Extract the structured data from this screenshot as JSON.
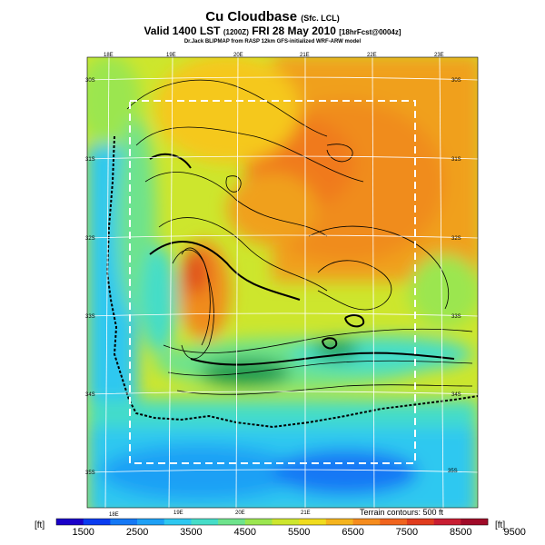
{
  "title": {
    "main": "Cu Cloudbase",
    "suffix": "(Sfc. LCL)"
  },
  "valid": {
    "main": "Valid 1400 LST",
    "code": "(1200Z)",
    "date": "FRI 28 May 2010",
    "fcst": "[18hrFcst@0004z]"
  },
  "credit": "Dr.Jack BLIPMAP from RASP 12km GFS-initialized WRF-ARW model",
  "terrain_label": "Terrain contours: 500 ft",
  "unit_left": "[ft]",
  "unit_right": "[ft]",
  "longitudes_top": [
    "18E",
    "19E",
    "20E",
    "21E",
    "22E",
    "23E"
  ],
  "longitudes_bottom": [
    "18E",
    "19E",
    "20E",
    "21E"
  ],
  "latitudes_left": [
    "30S",
    "31S",
    "32S",
    "33S",
    "34S",
    "35S"
  ],
  "latitudes_right": [
    "30S",
    "31S",
    "32S",
    "33S",
    "34S",
    "35S"
  ],
  "colorbar": {
    "labels": [
      "1500",
      "2500",
      "3500",
      "4500",
      "5500",
      "6500",
      "7500",
      "8500",
      "9500"
    ],
    "colors": [
      "#1a00c8",
      "#0a3cf0",
      "#1478f5",
      "#1ea0f5",
      "#2ec8f0",
      "#45ddc8",
      "#6ee38c",
      "#9be650",
      "#cde62d",
      "#f0dc1e",
      "#f5b41e",
      "#f58c1e",
      "#f0641e",
      "#e03c1e",
      "#c81e32",
      "#a00a28"
    ]
  }
}
